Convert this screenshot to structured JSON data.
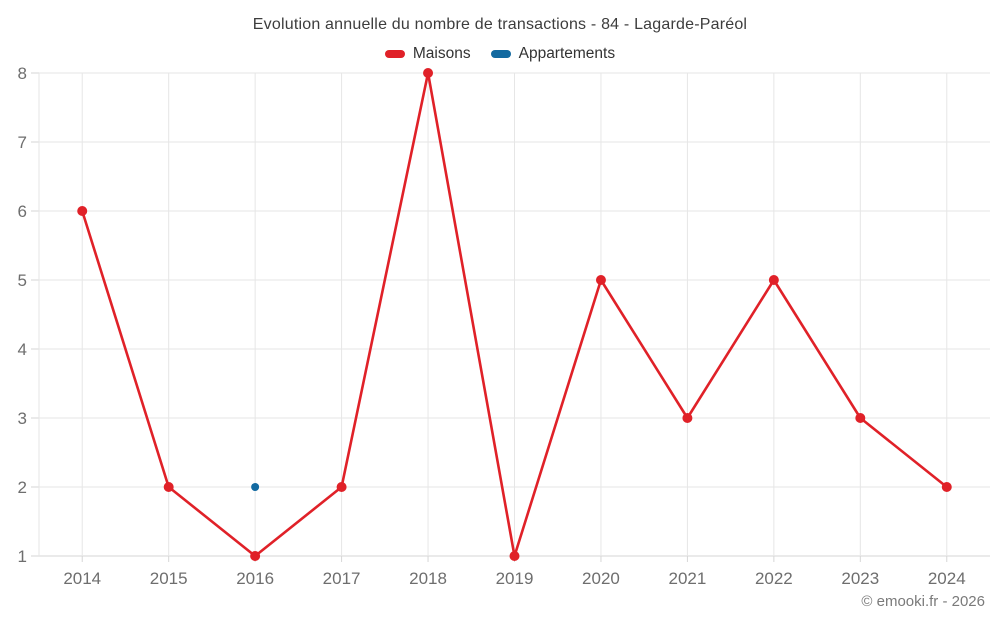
{
  "title": "Evolution annuelle du nombre de transactions - 84 - Lagarde-Paréol",
  "footer": "© emooki.fr - 2026",
  "chart_data": {
    "type": "line",
    "title": "Evolution annuelle du nombre de transactions - 84 - Lagarde-Paréol",
    "categories": [
      "2014",
      "2015",
      "2016",
      "2017",
      "2018",
      "2019",
      "2020",
      "2021",
      "2022",
      "2023",
      "2024"
    ],
    "series": [
      {
        "name": "Maisons",
        "color": "#e02128",
        "marker_radius": 5,
        "values": [
          6,
          2,
          1,
          2,
          8,
          1,
          5,
          3,
          5,
          3,
          2
        ]
      },
      {
        "name": "Appartements",
        "color": "#1269a0",
        "marker_radius": 4,
        "values": [
          null,
          null,
          2,
          null,
          null,
          null,
          null,
          null,
          null,
          null,
          null
        ]
      }
    ],
    "xlabel": "",
    "ylabel": "",
    "ylim": [
      1,
      8
    ],
    "ytick_step": 1,
    "yticks": [
      1,
      2,
      3,
      4,
      5,
      6,
      7,
      8
    ],
    "grid": true,
    "legend_position": "top",
    "grid_color": "#e6e6e6",
    "axis_color": "#d6d6d6",
    "tick_label_color": "#6e6e6e"
  }
}
